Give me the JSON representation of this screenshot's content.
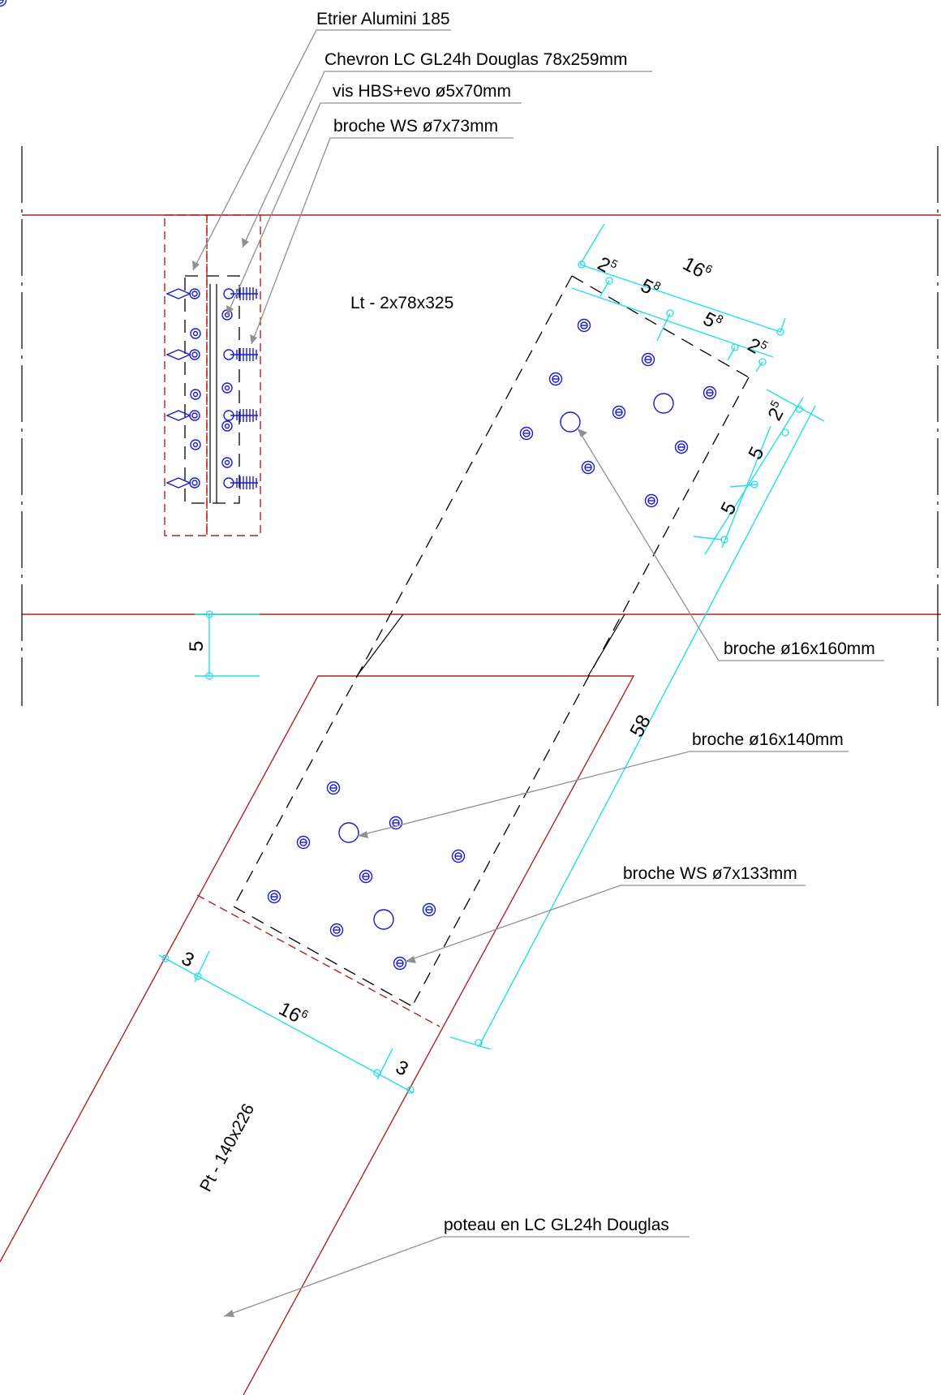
{
  "labels": {
    "etrier": "Etrier Alumini 185",
    "chevron": "Chevron LC GL24h Douglas 78x259mm",
    "vis": "vis HBS+evo ø5x70mm",
    "broche_ws73": "broche WS ø7x73mm",
    "lt": "Lt - 2x78x325",
    "broche160": "broche ø16x160mm",
    "broche140": "broche ø16x140mm",
    "broche_ws133": "broche WS ø7x133mm",
    "pt": "Pt - 140x226",
    "poteau": "poteau en LC GL24h Douglas"
  },
  "dimensions": {
    "top_width": {
      "base": "16",
      "sup": "6"
    },
    "top_a": {
      "base": "2",
      "sup": "5"
    },
    "top_b": {
      "base": "5",
      "sup": "8"
    },
    "top_c": {
      "base": "5",
      "sup": "8"
    },
    "top_d": {
      "base": "2",
      "sup": "5"
    },
    "side_a": {
      "base": "2",
      "sup": "5"
    },
    "side_b": "5",
    "side_c": "5",
    "left_5": "5",
    "length": "58",
    "bottom_left": "3",
    "bottom_width": {
      "base": "16",
      "sup": "6"
    },
    "bottom_right": "3"
  },
  "colors": {
    "timber": "#b22222",
    "dimension": "#22e0e8",
    "fastener": "#1a1acc",
    "leader": "#909090",
    "hidden": "#000000"
  }
}
